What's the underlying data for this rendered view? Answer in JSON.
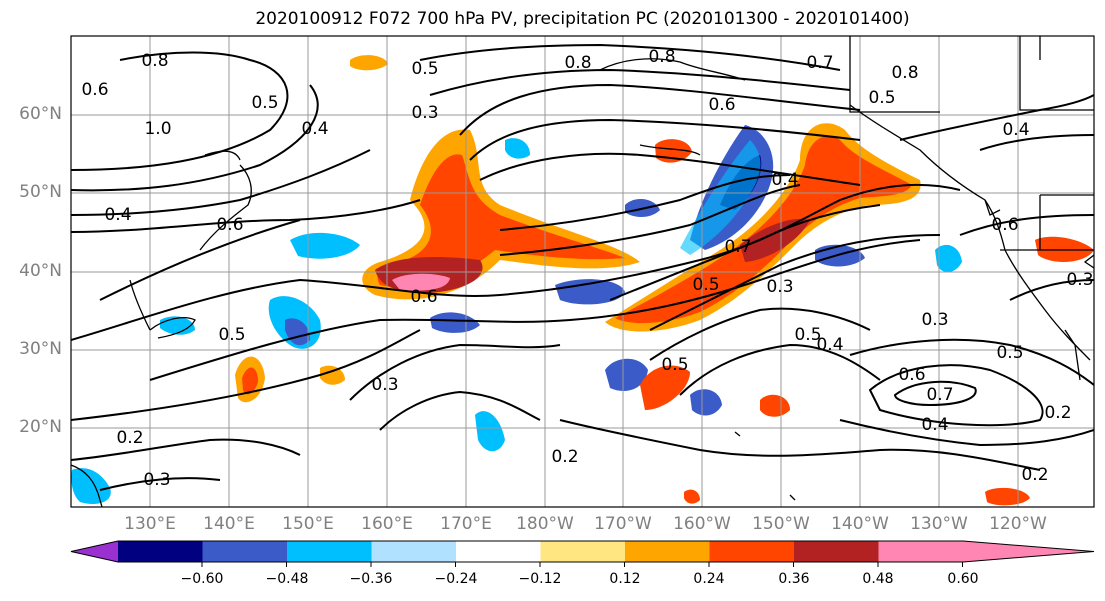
{
  "title": "2020100912 F072 700 hPa PV, precipitation PC (2020101300 - 2020101400)",
  "lat_labels": [
    "60°N",
    "50°N",
    "40°N",
    "30°N",
    "20°N"
  ],
  "lon_labels": [
    "130°E",
    "140°E",
    "150°E",
    "160°E",
    "170°E",
    "180°W",
    "170°W",
    "160°W",
    "150°W",
    "140°W",
    "130°W",
    "120°W"
  ],
  "colorbar": {
    "colors": [
      "#9b30d0",
      "#000080",
      "#3a5bc8",
      "#00bfff",
      "#b0e2ff",
      "#ffffff",
      "#ffe680",
      "#ffa500",
      "#ff4500",
      "#b22222",
      "#ff85b3",
      "#ff85b3"
    ],
    "tick_labels": [
      "−0.60",
      "−0.48",
      "−0.36",
      "−0.24",
      "−0.12",
      "0.12",
      "0.24",
      "0.36",
      "0.48",
      "0.60"
    ]
  },
  "contour_labels": [
    "0.8",
    "0.5",
    "0.8",
    "0.8",
    "0.7",
    "0.8",
    "0.5",
    "0.6",
    "1.0",
    "0.5",
    "0.3",
    "0.4",
    "0.6",
    "0.4",
    "0.4",
    "0.4",
    "0.6",
    "0.6",
    "0.5",
    "0.6",
    "0.7",
    "0.5",
    "0.3",
    "0.3",
    "0.5",
    "0.4",
    "0.5",
    "0.5",
    "0.3",
    "0.6",
    "0.7",
    "0.4",
    "0.2",
    "0.2",
    "0.2",
    "0.3",
    "0.2",
    "0.3"
  ]
}
